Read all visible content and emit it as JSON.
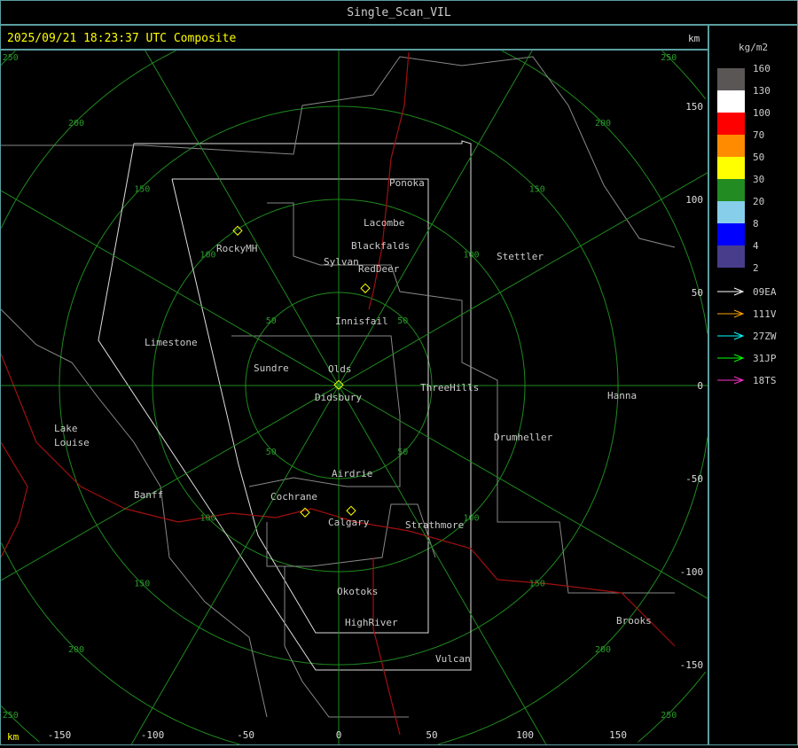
{
  "window": {
    "title": "Single_Scan_VIL"
  },
  "header": {
    "timestamp": "2025/09/21 18:23:37 UTC Composite",
    "unit_top": "km",
    "unit_bottom": "km"
  },
  "legend": {
    "unit": "kg/m2",
    "bins": [
      {
        "label": "160",
        "color": "#5a5656"
      },
      {
        "label": "130",
        "color": "#ffffff"
      },
      {
        "label": "100",
        "color": "#ff0000"
      },
      {
        "label": "70",
        "color": "#ff8c00"
      },
      {
        "label": "50",
        "color": "#ffff00"
      },
      {
        "label": "30",
        "color": "#228b22"
      },
      {
        "label": "20",
        "color": "#87ceeb"
      },
      {
        "label": "8",
        "color": "#0000ff"
      },
      {
        "label": "4",
        "color": "#483d8b"
      },
      {
        "label": "2",
        "color": ""
      }
    ],
    "tracks": [
      {
        "label": "09EA",
        "color": "#ffffff"
      },
      {
        "label": "111V",
        "color": "#ffa500"
      },
      {
        "label": "27ZW",
        "color": "#00ffff"
      },
      {
        "label": "31JP",
        "color": "#00ff00"
      },
      {
        "label": "18TS",
        "color": "#ff33cc"
      }
    ]
  },
  "x_axis": {
    "ticks": [
      "-150",
      "-100",
      "-50",
      "0",
      "50",
      "100",
      "150"
    ]
  },
  "y_axis": {
    "ticks": [
      "150",
      "100",
      "50",
      "0",
      "-50",
      "-100",
      "-150"
    ]
  },
  "rings": {
    "labels": [
      "50",
      "100",
      "150",
      "200",
      "250"
    ]
  },
  "towns": [
    "Ponoka",
    "Lacombe",
    "Blackfalds",
    "Sylvan",
    "RedDeer",
    "RockyMH",
    "Stettler",
    "Innisfail",
    "Limestone",
    "Sundre",
    "Olds",
    "Didsbury",
    "ThreeHills",
    "Hanna",
    "Drumheller",
    "Lake",
    "Louise",
    "Airdrie",
    "Banff",
    "Cochrane",
    "Calgary",
    "Strathmore",
    "Okotoks",
    "HighRiver",
    "Brooks",
    "Vulcan"
  ]
}
